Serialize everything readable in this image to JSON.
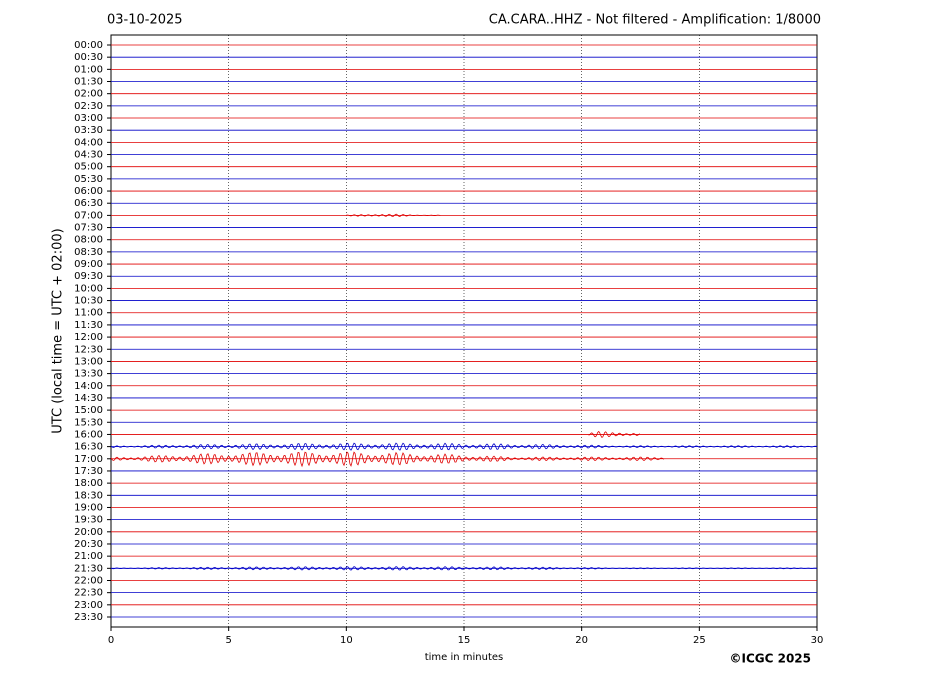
{
  "chart_data": {
    "type": "helicorder",
    "date": "03-10-2025",
    "title": "CA.CARA..HHZ - Not filtered - Amplification: 1/8000",
    "ylabel": "UTC (local time = UTC + 02:00)",
    "xlabel": "time in minutes",
    "credit": "©ICGC 2025",
    "xlim": [
      0,
      30
    ],
    "xticks": [
      0,
      5,
      10,
      15,
      20,
      25,
      30
    ],
    "grid": true,
    "rows": [
      {
        "label": "00:00",
        "color": "#e00000"
      },
      {
        "label": "00:30",
        "color": "#0000c8"
      },
      {
        "label": "01:00",
        "color": "#e00000"
      },
      {
        "label": "01:30",
        "color": "#0000c8"
      },
      {
        "label": "02:00",
        "color": "#e00000"
      },
      {
        "label": "02:30",
        "color": "#0000c8"
      },
      {
        "label": "03:00",
        "color": "#e00000"
      },
      {
        "label": "03:30",
        "color": "#0000c8"
      },
      {
        "label": "04:00",
        "color": "#e00000"
      },
      {
        "label": "04:30",
        "color": "#0000c8"
      },
      {
        "label": "05:00",
        "color": "#e00000"
      },
      {
        "label": "05:30",
        "color": "#0000c8"
      },
      {
        "label": "06:00",
        "color": "#e00000"
      },
      {
        "label": "06:30",
        "color": "#0000c8"
      },
      {
        "label": "07:00",
        "color": "#e00000",
        "events": [
          {
            "x": [
              10,
              14
            ],
            "amplitude": 0.12
          }
        ]
      },
      {
        "label": "07:30",
        "color": "#0000c8"
      },
      {
        "label": "08:00",
        "color": "#e00000"
      },
      {
        "label": "08:30",
        "color": "#0000c8"
      },
      {
        "label": "09:00",
        "color": "#e00000"
      },
      {
        "label": "09:30",
        "color": "#0000c8"
      },
      {
        "label": "10:00",
        "color": "#e00000"
      },
      {
        "label": "10:30",
        "color": "#0000c8"
      },
      {
        "label": "11:00",
        "color": "#e00000"
      },
      {
        "label": "11:30",
        "color": "#0000c8"
      },
      {
        "label": "12:00",
        "color": "#e00000"
      },
      {
        "label": "12:30",
        "color": "#0000c8"
      },
      {
        "label": "13:00",
        "color": "#e00000"
      },
      {
        "label": "13:30",
        "color": "#0000c8"
      },
      {
        "label": "14:00",
        "color": "#e00000"
      },
      {
        "label": "14:30",
        "color": "#0000c8"
      },
      {
        "label": "15:00",
        "color": "#e00000"
      },
      {
        "label": "15:30",
        "color": "#0000c8"
      },
      {
        "label": "16:00",
        "color": "#e00000",
        "events": [
          {
            "x": [
              20.3,
              22.5
            ],
            "amplitude": 0.35
          }
        ]
      },
      {
        "label": "16:30",
        "color": "#0000c8",
        "events": [
          {
            "x": [
              0,
              30
            ],
            "amplitude": 0.3
          }
        ]
      },
      {
        "label": "17:00",
        "color": "#e00000",
        "events": [
          {
            "x": [
              0,
              23.5
            ],
            "amplitude": 0.6
          }
        ]
      },
      {
        "label": "17:30",
        "color": "#0000c8"
      },
      {
        "label": "18:00",
        "color": "#e00000"
      },
      {
        "label": "18:30",
        "color": "#0000c8"
      },
      {
        "label": "19:00",
        "color": "#e00000"
      },
      {
        "label": "19:30",
        "color": "#0000c8"
      },
      {
        "label": "20:00",
        "color": "#e00000"
      },
      {
        "label": "20:30",
        "color": "#0000c8"
      },
      {
        "label": "21:00",
        "color": "#e00000"
      },
      {
        "label": "21:30",
        "color": "#0000c8",
        "events": [
          {
            "x": [
              0,
              30
            ],
            "amplitude": 0.15
          }
        ]
      },
      {
        "label": "22:00",
        "color": "#e00000"
      },
      {
        "label": "22:30",
        "color": "#0000c8"
      },
      {
        "label": "23:00",
        "color": "#e00000"
      },
      {
        "label": "23:30",
        "color": "#0000c8"
      }
    ]
  }
}
